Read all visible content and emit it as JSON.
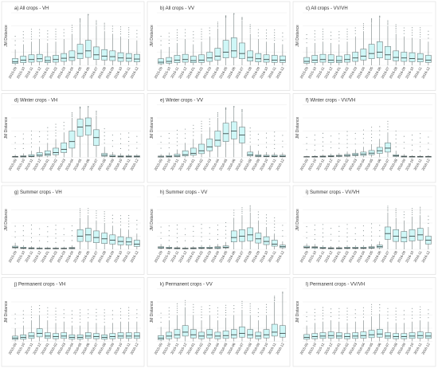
{
  "figure": {
    "ylabel": "JM Distance",
    "months": [
      "2015-09",
      "2015-10",
      "2015-11",
      "2015-12",
      "2016-01",
      "2016-02",
      "2016-03",
      "2016-04",
      "2016-05",
      "2016-06",
      "2016-07",
      "2016-08",
      "2016-09",
      "2016-10",
      "2016-11",
      "2016-12"
    ],
    "colors": {
      "box_fill": "#cff7f7",
      "box_stroke": "#5f6b6b",
      "median": "#2f3a3a",
      "outlier": "#7a8585",
      "grid": "#ebebeb",
      "panel_border": "#d9d9d9"
    }
  },
  "chart_data": [
    {
      "type": "box",
      "title": "a) All crops - VH",
      "ylim": [
        0,
        2
      ],
      "medians": [
        0.13,
        0.2,
        0.22,
        0.25,
        0.18,
        0.22,
        0.27,
        0.3,
        0.45,
        0.55,
        0.4,
        0.35,
        0.33,
        0.28,
        0.27,
        0.24
      ],
      "q1": [
        0.07,
        0.1,
        0.12,
        0.14,
        0.1,
        0.12,
        0.15,
        0.18,
        0.25,
        0.3,
        0.22,
        0.2,
        0.18,
        0.15,
        0.15,
        0.13
      ],
      "q3": [
        0.26,
        0.35,
        0.4,
        0.42,
        0.33,
        0.38,
        0.45,
        0.55,
        0.8,
        0.95,
        0.7,
        0.6,
        0.55,
        0.48,
        0.45,
        0.42
      ],
      "whisker_high": [
        0.6,
        0.8,
        0.9,
        1.0,
        0.85,
        0.9,
        1.0,
        1.2,
        1.6,
        1.9,
        1.5,
        1.3,
        1.2,
        1.1,
        1.0,
        0.95
      ]
    },
    {
      "type": "box",
      "title": "b) All crops - VV",
      "ylim": [
        0,
        2
      ],
      "medians": [
        0.12,
        0.15,
        0.2,
        0.22,
        0.18,
        0.2,
        0.28,
        0.35,
        0.5,
        0.55,
        0.45,
        0.3,
        0.25,
        0.22,
        0.2,
        0.2
      ],
      "q1": [
        0.06,
        0.08,
        0.1,
        0.12,
        0.1,
        0.11,
        0.15,
        0.2,
        0.28,
        0.3,
        0.25,
        0.16,
        0.13,
        0.12,
        0.11,
        0.11
      ],
      "q3": [
        0.25,
        0.3,
        0.38,
        0.42,
        0.35,
        0.4,
        0.5,
        0.65,
        0.95,
        1.05,
        0.85,
        0.55,
        0.45,
        0.4,
        0.38,
        0.36
      ],
      "whisker_high": [
        0.6,
        0.7,
        0.85,
        1.0,
        0.8,
        0.9,
        1.1,
        1.4,
        1.8,
        1.95,
        1.7,
        1.2,
        1.0,
        0.9,
        0.85,
        0.8
      ]
    },
    {
      "type": "box",
      "title": "c) All crops - VV/VH",
      "ylim": [
        0,
        2
      ],
      "medians": [
        0.15,
        0.2,
        0.22,
        0.2,
        0.18,
        0.22,
        0.28,
        0.35,
        0.45,
        0.5,
        0.4,
        0.3,
        0.28,
        0.26,
        0.24,
        0.2
      ],
      "q1": [
        0.08,
        0.1,
        0.12,
        0.1,
        0.1,
        0.12,
        0.15,
        0.2,
        0.25,
        0.28,
        0.22,
        0.17,
        0.15,
        0.14,
        0.13,
        0.11
      ],
      "q3": [
        0.3,
        0.38,
        0.42,
        0.4,
        0.35,
        0.4,
        0.5,
        0.62,
        0.8,
        0.9,
        0.72,
        0.55,
        0.5,
        0.48,
        0.45,
        0.38
      ],
      "whisker_high": [
        0.7,
        0.85,
        0.9,
        0.85,
        0.8,
        0.9,
        1.1,
        1.3,
        1.6,
        1.8,
        1.5,
        1.2,
        1.1,
        1.05,
        1.0,
        0.9
      ]
    },
    {
      "type": "box",
      "title": "d) Winter crops - VH",
      "ylim": [
        0,
        2
      ],
      "medians": [
        0.02,
        0.03,
        0.04,
        0.08,
        0.12,
        0.18,
        0.3,
        0.6,
        1.15,
        1.2,
        0.75,
        0.08,
        0.04,
        0.03,
        0.03,
        0.03
      ],
      "q1": [
        0.01,
        0.01,
        0.02,
        0.04,
        0.06,
        0.1,
        0.18,
        0.35,
        0.8,
        0.85,
        0.45,
        0.04,
        0.02,
        0.01,
        0.01,
        0.01
      ],
      "q3": [
        0.04,
        0.06,
        0.1,
        0.18,
        0.25,
        0.35,
        0.55,
        1.0,
        1.45,
        1.5,
        1.05,
        0.15,
        0.08,
        0.06,
        0.06,
        0.06
      ],
      "whisker_high": [
        0.1,
        0.15,
        0.25,
        0.4,
        0.55,
        0.7,
        0.95,
        1.5,
        1.85,
        1.9,
        1.6,
        0.4,
        0.2,
        0.15,
        0.12,
        0.12
      ]
    },
    {
      "type": "box",
      "title": "e) Winter crops - VV",
      "ylim": [
        0,
        2
      ],
      "medians": [
        0.02,
        0.03,
        0.05,
        0.1,
        0.15,
        0.25,
        0.4,
        0.65,
        0.9,
        1.0,
        0.85,
        0.1,
        0.05,
        0.04,
        0.04,
        0.04
      ],
      "q1": [
        0.01,
        0.01,
        0.02,
        0.05,
        0.08,
        0.14,
        0.25,
        0.42,
        0.6,
        0.7,
        0.55,
        0.05,
        0.02,
        0.02,
        0.02,
        0.02
      ],
      "q3": [
        0.05,
        0.07,
        0.12,
        0.25,
        0.35,
        0.5,
        0.7,
        1.0,
        1.3,
        1.35,
        1.15,
        0.2,
        0.1,
        0.08,
        0.08,
        0.08
      ],
      "whisker_high": [
        0.12,
        0.18,
        0.3,
        0.55,
        0.7,
        0.9,
        1.15,
        1.5,
        1.8,
        1.9,
        1.7,
        0.45,
        0.25,
        0.2,
        0.18,
        0.18
      ]
    },
    {
      "type": "box",
      "title": "f) Winter crops - VV/VH",
      "ylim": [
        0,
        2
      ],
      "medians": [
        0.02,
        0.02,
        0.03,
        0.04,
        0.05,
        0.07,
        0.1,
        0.12,
        0.16,
        0.25,
        0.35,
        0.06,
        0.03,
        0.02,
        0.02,
        0.02
      ],
      "q1": [
        0.01,
        0.01,
        0.01,
        0.02,
        0.03,
        0.04,
        0.06,
        0.07,
        0.1,
        0.15,
        0.2,
        0.03,
        0.01,
        0.01,
        0.01,
        0.01
      ],
      "q3": [
        0.03,
        0.04,
        0.05,
        0.07,
        0.08,
        0.11,
        0.15,
        0.2,
        0.26,
        0.38,
        0.55,
        0.1,
        0.05,
        0.04,
        0.04,
        0.04
      ],
      "whisker_high": [
        0.06,
        0.08,
        0.1,
        0.14,
        0.16,
        0.22,
        0.3,
        0.4,
        0.5,
        0.7,
        0.95,
        0.25,
        0.12,
        0.08,
        0.08,
        0.08
      ]
    },
    {
      "type": "box",
      "title": "g) Summer crops - VH",
      "ylim": [
        0,
        2
      ],
      "medians": [
        0.08,
        0.05,
        0.04,
        0.03,
        0.03,
        0.03,
        0.03,
        0.04,
        0.5,
        0.55,
        0.45,
        0.4,
        0.35,
        0.3,
        0.28,
        0.2
      ],
      "q1": [
        0.05,
        0.03,
        0.02,
        0.02,
        0.02,
        0.02,
        0.02,
        0.02,
        0.3,
        0.3,
        0.25,
        0.22,
        0.2,
        0.17,
        0.16,
        0.11
      ],
      "q3": [
        0.12,
        0.08,
        0.06,
        0.05,
        0.05,
        0.05,
        0.05,
        0.07,
        0.75,
        0.8,
        0.7,
        0.62,
        0.55,
        0.48,
        0.45,
        0.35
      ],
      "whisker_high": [
        0.25,
        0.15,
        0.12,
        0.1,
        0.1,
        0.1,
        0.1,
        0.15,
        1.2,
        1.3,
        1.1,
        1.0,
        0.9,
        0.8,
        0.75,
        0.6
      ]
    },
    {
      "type": "box",
      "title": "h) Summer crops - VV",
      "ylim": [
        0,
        2
      ],
      "medians": [
        0.06,
        0.05,
        0.04,
        0.03,
        0.04,
        0.05,
        0.05,
        0.06,
        0.08,
        0.45,
        0.5,
        0.55,
        0.4,
        0.3,
        0.2,
        0.1
      ],
      "q1": [
        0.04,
        0.03,
        0.02,
        0.02,
        0.02,
        0.03,
        0.03,
        0.03,
        0.05,
        0.28,
        0.3,
        0.32,
        0.24,
        0.18,
        0.12,
        0.06
      ],
      "q3": [
        0.1,
        0.08,
        0.06,
        0.05,
        0.06,
        0.08,
        0.08,
        0.1,
        0.13,
        0.7,
        0.75,
        0.82,
        0.62,
        0.48,
        0.35,
        0.16
      ],
      "whisker_high": [
        0.2,
        0.15,
        0.12,
        0.1,
        0.12,
        0.16,
        0.16,
        0.2,
        0.28,
        1.2,
        1.3,
        1.4,
        1.1,
        0.85,
        0.6,
        0.3
      ]
    },
    {
      "type": "box",
      "title": "i) Summer crops - VV/VH",
      "ylim": [
        0,
        2
      ],
      "medians": [
        0.08,
        0.07,
        0.05,
        0.04,
        0.04,
        0.05,
        0.05,
        0.05,
        0.06,
        0.1,
        0.6,
        0.5,
        0.45,
        0.5,
        0.55,
        0.35
      ],
      "q1": [
        0.05,
        0.04,
        0.03,
        0.02,
        0.02,
        0.03,
        0.03,
        0.03,
        0.04,
        0.06,
        0.38,
        0.3,
        0.28,
        0.32,
        0.35,
        0.2
      ],
      "q3": [
        0.12,
        0.1,
        0.08,
        0.06,
        0.06,
        0.08,
        0.08,
        0.08,
        0.1,
        0.16,
        0.85,
        0.75,
        0.68,
        0.75,
        0.8,
        0.5
      ],
      "whisker_high": [
        0.22,
        0.2,
        0.15,
        0.12,
        0.12,
        0.15,
        0.15,
        0.15,
        0.2,
        0.3,
        1.4,
        1.2,
        1.1,
        1.25,
        1.3,
        0.85
      ]
    },
    {
      "type": "box",
      "title": "j) Permanent crops - VH",
      "ylim": [
        0,
        2
      ],
      "medians": [
        0.12,
        0.15,
        0.2,
        0.3,
        0.2,
        0.18,
        0.2,
        0.15,
        0.15,
        0.2,
        0.18,
        0.15,
        0.18,
        0.2,
        0.2,
        0.2
      ],
      "q1": [
        0.07,
        0.08,
        0.11,
        0.17,
        0.11,
        0.1,
        0.11,
        0.08,
        0.08,
        0.11,
        0.1,
        0.08,
        0.1,
        0.11,
        0.11,
        0.11
      ],
      "q3": [
        0.2,
        0.25,
        0.33,
        0.48,
        0.33,
        0.3,
        0.33,
        0.25,
        0.25,
        0.33,
        0.3,
        0.25,
        0.3,
        0.33,
        0.33,
        0.33
      ],
      "whisker_high": [
        0.5,
        0.6,
        0.8,
        1.0,
        0.8,
        0.7,
        0.75,
        0.6,
        0.6,
        0.75,
        0.7,
        0.6,
        0.7,
        0.75,
        0.75,
        0.75
      ]
    },
    {
      "type": "box",
      "title": "k) Permanent crops - VV",
      "ylim": [
        0,
        2
      ],
      "medians": [
        0.12,
        0.2,
        0.25,
        0.35,
        0.25,
        0.2,
        0.25,
        0.2,
        0.22,
        0.25,
        0.3,
        0.25,
        0.2,
        0.25,
        0.35,
        0.3
      ],
      "q1": [
        0.06,
        0.1,
        0.13,
        0.2,
        0.13,
        0.1,
        0.13,
        0.1,
        0.11,
        0.13,
        0.16,
        0.13,
        0.1,
        0.13,
        0.2,
        0.16
      ],
      "q3": [
        0.22,
        0.35,
        0.45,
        0.6,
        0.45,
        0.35,
        0.45,
        0.35,
        0.4,
        0.45,
        0.55,
        0.45,
        0.35,
        0.45,
        0.65,
        0.6
      ],
      "whisker_high": [
        0.55,
        0.8,
        1.0,
        1.3,
        1.0,
        0.8,
        1.0,
        0.8,
        0.9,
        1.0,
        1.2,
        1.0,
        0.8,
        1.0,
        1.5,
        1.8
      ]
    },
    {
      "type": "box",
      "title": "l) Permanent crops - VV/VH",
      "ylim": [
        0,
        2
      ],
      "medians": [
        0.15,
        0.18,
        0.2,
        0.22,
        0.2,
        0.18,
        0.2,
        0.22,
        0.25,
        0.28,
        0.2,
        0.18,
        0.18,
        0.2,
        0.22,
        0.2
      ],
      "q1": [
        0.08,
        0.1,
        0.11,
        0.12,
        0.11,
        0.1,
        0.11,
        0.12,
        0.14,
        0.16,
        0.11,
        0.1,
        0.1,
        0.11,
        0.12,
        0.11
      ],
      "q3": [
        0.26,
        0.3,
        0.33,
        0.36,
        0.33,
        0.3,
        0.33,
        0.36,
        0.42,
        0.46,
        0.33,
        0.3,
        0.3,
        0.33,
        0.36,
        0.33
      ],
      "whisker_high": [
        0.6,
        0.7,
        0.75,
        0.8,
        0.75,
        0.7,
        0.75,
        0.8,
        0.95,
        1.05,
        0.75,
        0.7,
        0.7,
        0.75,
        0.8,
        0.75
      ]
    }
  ]
}
